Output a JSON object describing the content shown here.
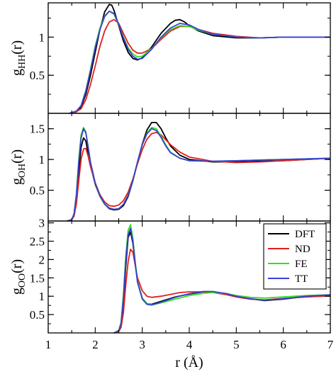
{
  "chart_data": [
    {
      "type": "line",
      "panel": "top",
      "ylabel": "g_HH(r)",
      "ylabel_main": "g",
      "ylabel_sub": "HH",
      "ylabel_tail": "(r)",
      "xlim": [
        1,
        7
      ],
      "ylim": [
        0,
        1.45
      ],
      "yticks": [
        0.5,
        1
      ],
      "ytick_labels": [
        "0.5",
        "1"
      ],
      "series": [
        {
          "name": "DFT",
          "color": "#000000",
          "x": [
            1.45,
            1.6,
            1.7,
            1.8,
            1.9,
            2.0,
            2.1,
            2.2,
            2.3,
            2.35,
            2.4,
            2.5,
            2.6,
            2.7,
            2.8,
            2.9,
            3.0,
            3.2,
            3.4,
            3.6,
            3.7,
            3.8,
            3.9,
            4.0,
            4.2,
            4.5,
            5.0,
            5.5,
            6.0,
            6.5,
            7.0
          ],
          "y": [
            0.0,
            0.02,
            0.08,
            0.25,
            0.5,
            0.8,
            1.1,
            1.33,
            1.43,
            1.42,
            1.35,
            1.15,
            0.95,
            0.8,
            0.72,
            0.7,
            0.73,
            0.87,
            1.05,
            1.18,
            1.22,
            1.23,
            1.2,
            1.15,
            1.08,
            1.02,
            0.99,
            0.99,
            1.0,
            1.0,
            1.0
          ]
        },
        {
          "name": "ND",
          "color": "#e0201c",
          "x": [
            1.45,
            1.6,
            1.7,
            1.8,
            1.9,
            2.0,
            2.1,
            2.2,
            2.3,
            2.4,
            2.5,
            2.6,
            2.7,
            2.8,
            2.9,
            3.0,
            3.2,
            3.4,
            3.6,
            3.8,
            4.0,
            4.2,
            4.5,
            5.0,
            5.5,
            6.0,
            6.5,
            7.0
          ],
          "y": [
            0.0,
            0.02,
            0.06,
            0.18,
            0.38,
            0.62,
            0.88,
            1.08,
            1.2,
            1.23,
            1.18,
            1.05,
            0.92,
            0.83,
            0.79,
            0.79,
            0.85,
            0.97,
            1.08,
            1.14,
            1.14,
            1.1,
            1.05,
            1.01,
            0.99,
            1.0,
            1.0,
            1.0
          ]
        },
        {
          "name": "FE",
          "color": "#33e020",
          "x": [
            1.45,
            1.6,
            1.7,
            1.8,
            1.9,
            2.0,
            2.1,
            2.2,
            2.3,
            2.4,
            2.5,
            2.6,
            2.7,
            2.8,
            2.9,
            3.0,
            3.2,
            3.4,
            3.6,
            3.8,
            4.0,
            4.2,
            4.5,
            5.0,
            5.5,
            6.0,
            6.5,
            7.0
          ],
          "y": [
            0.0,
            0.03,
            0.1,
            0.3,
            0.58,
            0.88,
            1.12,
            1.28,
            1.34,
            1.3,
            1.16,
            1.0,
            0.86,
            0.78,
            0.74,
            0.75,
            0.85,
            0.99,
            1.1,
            1.15,
            1.14,
            1.09,
            1.04,
            1.0,
            0.99,
            1.0,
            1.0,
            1.0
          ]
        },
        {
          "name": "TT",
          "color": "#3b3fd6",
          "x": [
            1.45,
            1.6,
            1.7,
            1.8,
            1.9,
            2.0,
            2.1,
            2.2,
            2.3,
            2.4,
            2.5,
            2.6,
            2.7,
            2.8,
            2.9,
            3.0,
            3.2,
            3.4,
            3.6,
            3.8,
            4.0,
            4.2,
            4.5,
            5.0,
            5.5,
            6.0,
            6.5,
            7.0
          ],
          "y": [
            0.0,
            0.03,
            0.1,
            0.29,
            0.56,
            0.86,
            1.1,
            1.27,
            1.34,
            1.31,
            1.17,
            0.99,
            0.84,
            0.75,
            0.71,
            0.72,
            0.84,
            1.0,
            1.12,
            1.18,
            1.16,
            1.1,
            1.04,
            1.0,
            0.99,
            1.0,
            1.0,
            1.0
          ]
        }
      ]
    },
    {
      "type": "line",
      "panel": "middle",
      "ylabel": "g_OH(r)",
      "ylabel_main": "g",
      "ylabel_sub": "OH",
      "ylabel_tail": "(r)",
      "xlim": [
        1,
        7
      ],
      "ylim": [
        0,
        1.75
      ],
      "yticks": [
        0.5,
        1,
        1.5
      ],
      "ytick_labels": [
        "0.5",
        "1",
        "1.5"
      ],
      "series": [
        {
          "name": "DFT",
          "color": "#000000",
          "x": [
            1.4,
            1.5,
            1.55,
            1.6,
            1.65,
            1.7,
            1.75,
            1.8,
            1.85,
            1.9,
            2.0,
            2.1,
            2.2,
            2.3,
            2.4,
            2.5,
            2.6,
            2.7,
            2.8,
            2.9,
            3.0,
            3.1,
            3.2,
            3.3,
            3.4,
            3.5,
            3.6,
            3.8,
            4.0,
            4.5,
            5.0,
            5.5,
            6.0,
            6.5,
            7.0
          ],
          "y": [
            0.0,
            0.02,
            0.1,
            0.35,
            0.8,
            1.2,
            1.35,
            1.3,
            1.1,
            0.9,
            0.6,
            0.4,
            0.27,
            0.2,
            0.18,
            0.19,
            0.25,
            0.4,
            0.65,
            0.95,
            1.25,
            1.48,
            1.6,
            1.6,
            1.5,
            1.35,
            1.22,
            1.07,
            1.0,
            0.96,
            0.96,
            0.97,
            0.98,
            1.0,
            1.02
          ]
        },
        {
          "name": "ND",
          "color": "#e0201c",
          "x": [
            1.4,
            1.5,
            1.55,
            1.6,
            1.65,
            1.7,
            1.75,
            1.8,
            1.85,
            1.9,
            2.0,
            2.1,
            2.2,
            2.3,
            2.4,
            2.5,
            2.6,
            2.7,
            2.8,
            2.9,
            3.0,
            3.1,
            3.2,
            3.3,
            3.4,
            3.5,
            3.6,
            3.8,
            4.0,
            4.5,
            5.0,
            5.5,
            6.0,
            6.5,
            7.0
          ],
          "y": [
            0.0,
            0.02,
            0.08,
            0.28,
            0.65,
            1.0,
            1.17,
            1.18,
            1.05,
            0.88,
            0.62,
            0.43,
            0.31,
            0.25,
            0.24,
            0.26,
            0.33,
            0.47,
            0.68,
            0.93,
            1.16,
            1.33,
            1.42,
            1.44,
            1.4,
            1.32,
            1.24,
            1.12,
            1.04,
            0.97,
            0.95,
            0.96,
            0.98,
            1.0,
            1.02
          ]
        },
        {
          "name": "FE",
          "color": "#33e020",
          "x": [
            1.4,
            1.5,
            1.55,
            1.6,
            1.65,
            1.7,
            1.75,
            1.8,
            1.85,
            1.9,
            2.0,
            2.1,
            2.2,
            2.3,
            2.4,
            2.5,
            2.6,
            2.7,
            2.8,
            2.9,
            3.0,
            3.1,
            3.2,
            3.3,
            3.4,
            3.5,
            3.6,
            3.8,
            4.0,
            4.5,
            5.0,
            5.5,
            6.0,
            6.5,
            7.0
          ],
          "y": [
            0.0,
            0.02,
            0.12,
            0.45,
            1.0,
            1.4,
            1.52,
            1.45,
            1.2,
            0.95,
            0.62,
            0.4,
            0.27,
            0.21,
            0.19,
            0.2,
            0.27,
            0.42,
            0.66,
            0.96,
            1.24,
            1.43,
            1.52,
            1.5,
            1.38,
            1.24,
            1.12,
            1.02,
            0.98,
            0.97,
            0.98,
            0.99,
            1.0,
            1.01,
            1.02
          ]
        },
        {
          "name": "TT",
          "color": "#3b3fd6",
          "x": [
            1.4,
            1.5,
            1.55,
            1.6,
            1.65,
            1.7,
            1.75,
            1.8,
            1.85,
            1.9,
            2.0,
            2.1,
            2.2,
            2.3,
            2.4,
            2.5,
            2.6,
            2.7,
            2.8,
            2.9,
            3.0,
            3.1,
            3.2,
            3.3,
            3.4,
            3.5,
            3.6,
            3.8,
            4.0,
            4.5,
            5.0,
            5.5,
            6.0,
            6.5,
            7.0
          ],
          "y": [
            0.0,
            0.02,
            0.12,
            0.42,
            0.95,
            1.35,
            1.5,
            1.43,
            1.2,
            0.95,
            0.62,
            0.41,
            0.28,
            0.21,
            0.19,
            0.2,
            0.27,
            0.42,
            0.66,
            0.96,
            1.24,
            1.42,
            1.5,
            1.47,
            1.36,
            1.22,
            1.11,
            1.02,
            0.98,
            0.97,
            0.98,
            0.99,
            1.0,
            1.01,
            1.02
          ]
        }
      ]
    },
    {
      "type": "line",
      "panel": "bottom",
      "ylabel": "g_OO(r)",
      "ylabel_main": "g",
      "ylabel_sub": "OO",
      "ylabel_tail": "(r)",
      "xlabel": "r (Å)",
      "xlim": [
        1,
        7
      ],
      "ylim": [
        0,
        3.05
      ],
      "xticks": [
        1,
        2,
        3,
        4,
        5,
        6,
        7
      ],
      "xtick_labels": [
        "1",
        "2",
        "3",
        "4",
        "5",
        "6",
        "7"
      ],
      "yticks": [
        0.5,
        1,
        1.5,
        2,
        2.5,
        3
      ],
      "ytick_labels": [
        "0.5",
        "1",
        "1.5",
        "2",
        "2.5",
        "3"
      ],
      "legend": {
        "position": "top-right",
        "entries": [
          "DFT",
          "ND",
          "FE",
          "TT"
        ]
      },
      "series": [
        {
          "name": "DFT",
          "color": "#000000",
          "x": [
            2.4,
            2.5,
            2.55,
            2.6,
            2.65,
            2.7,
            2.75,
            2.8,
            2.85,
            2.9,
            3.0,
            3.1,
            3.2,
            3.3,
            3.5,
            3.7,
            4.0,
            4.3,
            4.5,
            4.8,
            5.0,
            5.3,
            5.6,
            6.0,
            6.5,
            7.0
          ],
          "y": [
            0.0,
            0.05,
            0.2,
            0.8,
            1.8,
            2.6,
            2.75,
            2.45,
            1.9,
            1.4,
            0.95,
            0.8,
            0.78,
            0.82,
            0.9,
            0.98,
            1.06,
            1.12,
            1.12,
            1.07,
            1.0,
            0.93,
            0.88,
            0.92,
            1.0,
            1.03
          ]
        },
        {
          "name": "ND",
          "color": "#e0201c",
          "x": [
            2.4,
            2.5,
            2.55,
            2.6,
            2.65,
            2.7,
            2.75,
            2.8,
            2.85,
            2.9,
            3.0,
            3.1,
            3.2,
            3.4,
            3.6,
            3.8,
            4.0,
            4.3,
            4.5,
            4.8,
            5.0,
            5.3,
            5.6,
            6.0,
            6.5,
            7.0
          ],
          "y": [
            0.0,
            0.04,
            0.15,
            0.55,
            1.3,
            1.95,
            2.28,
            2.2,
            1.85,
            1.5,
            1.15,
            1.0,
            0.97,
            1.0,
            1.05,
            1.1,
            1.12,
            1.12,
            1.1,
            1.04,
            0.98,
            0.92,
            0.9,
            0.94,
            0.98,
            1.01
          ]
        },
        {
          "name": "FE",
          "color": "#33e020",
          "x": [
            2.4,
            2.5,
            2.55,
            2.6,
            2.65,
            2.7,
            2.75,
            2.8,
            2.85,
            2.9,
            3.0,
            3.1,
            3.2,
            3.3,
            3.5,
            3.7,
            4.0,
            4.3,
            4.5,
            4.8,
            5.0,
            5.3,
            5.6,
            6.0,
            6.5,
            7.0
          ],
          "y": [
            0.0,
            0.07,
            0.3,
            1.05,
            2.1,
            2.8,
            2.95,
            2.6,
            1.95,
            1.4,
            0.95,
            0.8,
            0.77,
            0.79,
            0.85,
            0.92,
            1.02,
            1.08,
            1.1,
            1.07,
            1.02,
            0.97,
            0.95,
            0.98,
            1.02,
            1.04
          ]
        },
        {
          "name": "TT",
          "color": "#3b3fd6",
          "x": [
            2.4,
            2.5,
            2.55,
            2.6,
            2.65,
            2.7,
            2.75,
            2.8,
            2.85,
            2.9,
            3.0,
            3.1,
            3.2,
            3.3,
            3.5,
            3.7,
            4.0,
            4.3,
            4.5,
            4.8,
            5.0,
            5.3,
            5.6,
            6.0,
            6.5,
            7.0
          ],
          "y": [
            0.0,
            0.06,
            0.25,
            0.95,
            1.95,
            2.68,
            2.85,
            2.5,
            1.9,
            1.38,
            0.92,
            0.78,
            0.76,
            0.8,
            0.88,
            0.97,
            1.07,
            1.13,
            1.13,
            1.07,
            1.0,
            0.93,
            0.89,
            0.93,
            1.0,
            1.04
          ]
        }
      ]
    }
  ]
}
